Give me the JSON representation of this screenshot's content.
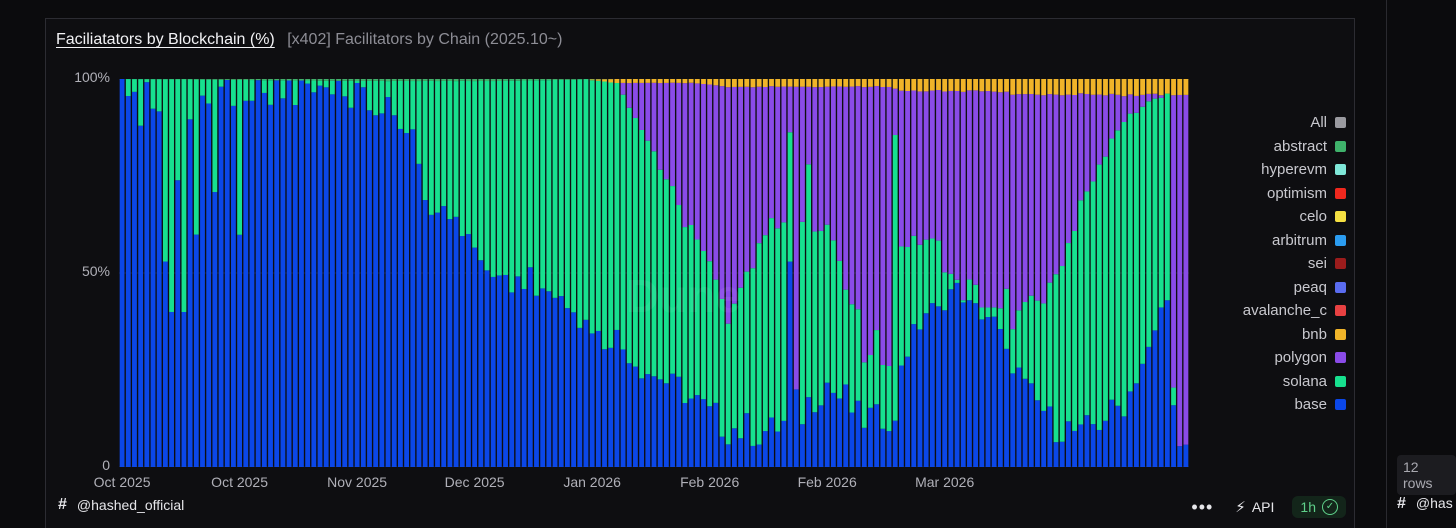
{
  "panel": {
    "title": "Faciliatators by Blockchain (%)",
    "subtitle": "[x402] Facilitators by Chain (2025.10~)",
    "author": "@hashed_official",
    "watermark": "Dune",
    "api_label": "API",
    "freshness": "1h",
    "menu_label": "•••"
  },
  "side": {
    "rows_badge": "12 rows",
    "author": "@has"
  },
  "chart_data": {
    "type": "bar",
    "stacked": true,
    "normalized": true,
    "title": "Faciliatators by Blockchain (%)",
    "xlabel": "",
    "ylabel": "",
    "ylim": [
      0,
      100
    ],
    "y_ticks": [
      "0",
      "50%",
      "100%"
    ],
    "x_tick_labels": [
      "Oct 2025",
      "Oct 2025",
      "Nov 2025",
      "Dec 2025",
      "Jan 2026",
      "Feb 2026",
      "Feb 2026",
      "Mar 2026"
    ],
    "x_tick_days": [
      0,
      19,
      38,
      57,
      76,
      95,
      114,
      133
    ],
    "num_days": 173,
    "grid": true,
    "legend_position": "right",
    "legend": [
      {
        "name": "All",
        "color": "#9a9aa0"
      },
      {
        "name": "abstract",
        "color": "#3fb26b"
      },
      {
        "name": "hyperevm",
        "color": "#7fe7d8"
      },
      {
        "name": "optimism",
        "color": "#f0281e"
      },
      {
        "name": "celo",
        "color": "#f5e042"
      },
      {
        "name": "arbitrum",
        "color": "#2b9cf0"
      },
      {
        "name": "sei",
        "color": "#9b1c1c"
      },
      {
        "name": "peaq",
        "color": "#5a6cf0"
      },
      {
        "name": "avalanche_c",
        "color": "#e84142"
      },
      {
        "name": "bnb",
        "color": "#f0b429"
      },
      {
        "name": "polygon",
        "color": "#8a4be8"
      },
      {
        "name": "solana",
        "color": "#17e08f"
      },
      {
        "name": "base",
        "color": "#0b47e8"
      }
    ],
    "series": [
      {
        "name": "base",
        "color": "#0b47e8",
        "keypoints": [
          [
            0,
            98
          ],
          [
            4,
            96
          ],
          [
            10,
            88
          ],
          [
            14,
            96
          ],
          [
            19,
            97
          ],
          [
            25,
            97
          ],
          [
            38,
            96
          ],
          [
            46,
            88
          ],
          [
            50,
            68
          ],
          [
            56,
            58
          ],
          [
            60,
            50
          ],
          [
            66,
            48
          ],
          [
            72,
            42
          ],
          [
            75,
            36
          ],
          [
            80,
            32
          ],
          [
            86,
            24
          ],
          [
            92,
            18
          ],
          [
            98,
            10
          ],
          [
            104,
            9
          ],
          [
            110,
            14
          ],
          [
            114,
            22
          ],
          [
            120,
            12
          ],
          [
            124,
            14
          ],
          [
            126,
            28
          ],
          [
            130,
            38
          ],
          [
            134,
            44
          ],
          [
            140,
            38
          ],
          [
            146,
            20
          ],
          [
            150,
            12
          ],
          [
            155,
            8
          ],
          [
            158,
            12
          ],
          [
            162,
            16
          ],
          [
            166,
            30
          ],
          [
            169,
            44
          ],
          [
            170,
            20
          ],
          [
            171,
            3
          ],
          [
            172,
            2
          ]
        ]
      },
      {
        "name": "solana",
        "color": "#17e08f",
        "keypoints": [
          [
            0,
            2
          ],
          [
            4,
            3
          ],
          [
            10,
            12
          ],
          [
            14,
            3
          ],
          [
            19,
            2
          ],
          [
            25,
            2
          ],
          [
            38,
            3
          ],
          [
            46,
            11
          ],
          [
            50,
            31
          ],
          [
            56,
            40
          ],
          [
            60,
            48
          ],
          [
            66,
            50
          ],
          [
            72,
            56
          ],
          [
            75,
            62
          ],
          [
            80,
            66
          ],
          [
            86,
            58
          ],
          [
            92,
            42
          ],
          [
            98,
            30
          ],
          [
            104,
            52
          ],
          [
            110,
            48
          ],
          [
            114,
            40
          ],
          [
            120,
            18
          ],
          [
            124,
            14
          ],
          [
            126,
            28
          ],
          [
            130,
            22
          ],
          [
            134,
            6
          ],
          [
            140,
            4
          ],
          [
            146,
            20
          ],
          [
            150,
            34
          ],
          [
            155,
            58
          ],
          [
            158,
            68
          ],
          [
            162,
            72
          ],
          [
            166,
            62
          ],
          [
            169,
            52
          ],
          [
            170,
            2
          ],
          [
            171,
            1
          ],
          [
            172,
            1
          ]
        ]
      },
      {
        "name": "polygon",
        "color": "#8a4be8",
        "keypoints": [
          [
            0,
            0
          ],
          [
            38,
            0
          ],
          [
            46,
            0
          ],
          [
            60,
            0
          ],
          [
            70,
            0
          ],
          [
            75,
            0
          ],
          [
            80,
            0
          ],
          [
            86,
            18
          ],
          [
            92,
            38
          ],
          [
            98,
            58
          ],
          [
            104,
            37
          ],
          [
            110,
            35
          ],
          [
            114,
            36
          ],
          [
            120,
            68
          ],
          [
            124,
            70
          ],
          [
            126,
            40
          ],
          [
            130,
            36
          ],
          [
            134,
            46
          ],
          [
            140,
            54
          ],
          [
            146,
            55
          ],
          [
            150,
            50
          ],
          [
            155,
            30
          ],
          [
            158,
            18
          ],
          [
            162,
            6
          ],
          [
            166,
            2
          ],
          [
            169,
            0
          ],
          [
            170,
            72
          ],
          [
            171,
            88
          ],
          [
            172,
            88
          ]
        ]
      },
      {
        "name": "bnb",
        "color": "#f0b429",
        "keypoints": [
          [
            0,
            0
          ],
          [
            38,
            0
          ],
          [
            60,
            0
          ],
          [
            70,
            0
          ],
          [
            75,
            0
          ],
          [
            80,
            1
          ],
          [
            86,
            1
          ],
          [
            92,
            1
          ],
          [
            98,
            2
          ],
          [
            104,
            2
          ],
          [
            110,
            2
          ],
          [
            114,
            2
          ],
          [
            120,
            2
          ],
          [
            124,
            2
          ],
          [
            126,
            3
          ],
          [
            130,
            3
          ],
          [
            134,
            3
          ],
          [
            140,
            3
          ],
          [
            146,
            4
          ],
          [
            150,
            4
          ],
          [
            155,
            4
          ],
          [
            158,
            4
          ],
          [
            162,
            4
          ],
          [
            166,
            4
          ],
          [
            169,
            4
          ],
          [
            170,
            4
          ],
          [
            171,
            4
          ],
          [
            172,
            4
          ]
        ]
      },
      {
        "name": "abstract",
        "color": "#3fb26b",
        "keypoints": [
          [
            0,
            0
          ],
          [
            38,
            0.5
          ],
          [
            60,
            0.5
          ],
          [
            80,
            0
          ],
          [
            172,
            0
          ]
        ]
      }
    ],
    "spikes": [
      {
        "day": 19,
        "base": 88,
        "solana": 0,
        "polygon": 12
      },
      {
        "day": 19,
        "base": 60,
        "solana": 40,
        "polygon": 0
      },
      {
        "day": 3,
        "base": 88,
        "solana": 12,
        "polygon": 0
      },
      {
        "day": 7,
        "base": 53,
        "solana": 47,
        "polygon": 0
      },
      {
        "day": 8,
        "base": 40,
        "solana": 60,
        "polygon": 0
      },
      {
        "day": 9,
        "base": 74,
        "solana": 26,
        "polygon": 0
      },
      {
        "day": 10,
        "base": 40,
        "solana": 60,
        "polygon": 0
      },
      {
        "day": 12,
        "base": 60,
        "solana": 40,
        "polygon": 0
      },
      {
        "day": 15,
        "base": 71,
        "solana": 29,
        "polygon": 0
      },
      {
        "day": 108,
        "base": 54,
        "solana": 34,
        "polygon": 12
      },
      {
        "day": 109,
        "base": 20,
        "solana": 0,
        "polygon": 78
      },
      {
        "day": 111,
        "base": 18,
        "solana": 60,
        "polygon": 20
      },
      {
        "day": 125,
        "base": 12,
        "solana": 74,
        "polygon": 12
      }
    ]
  }
}
